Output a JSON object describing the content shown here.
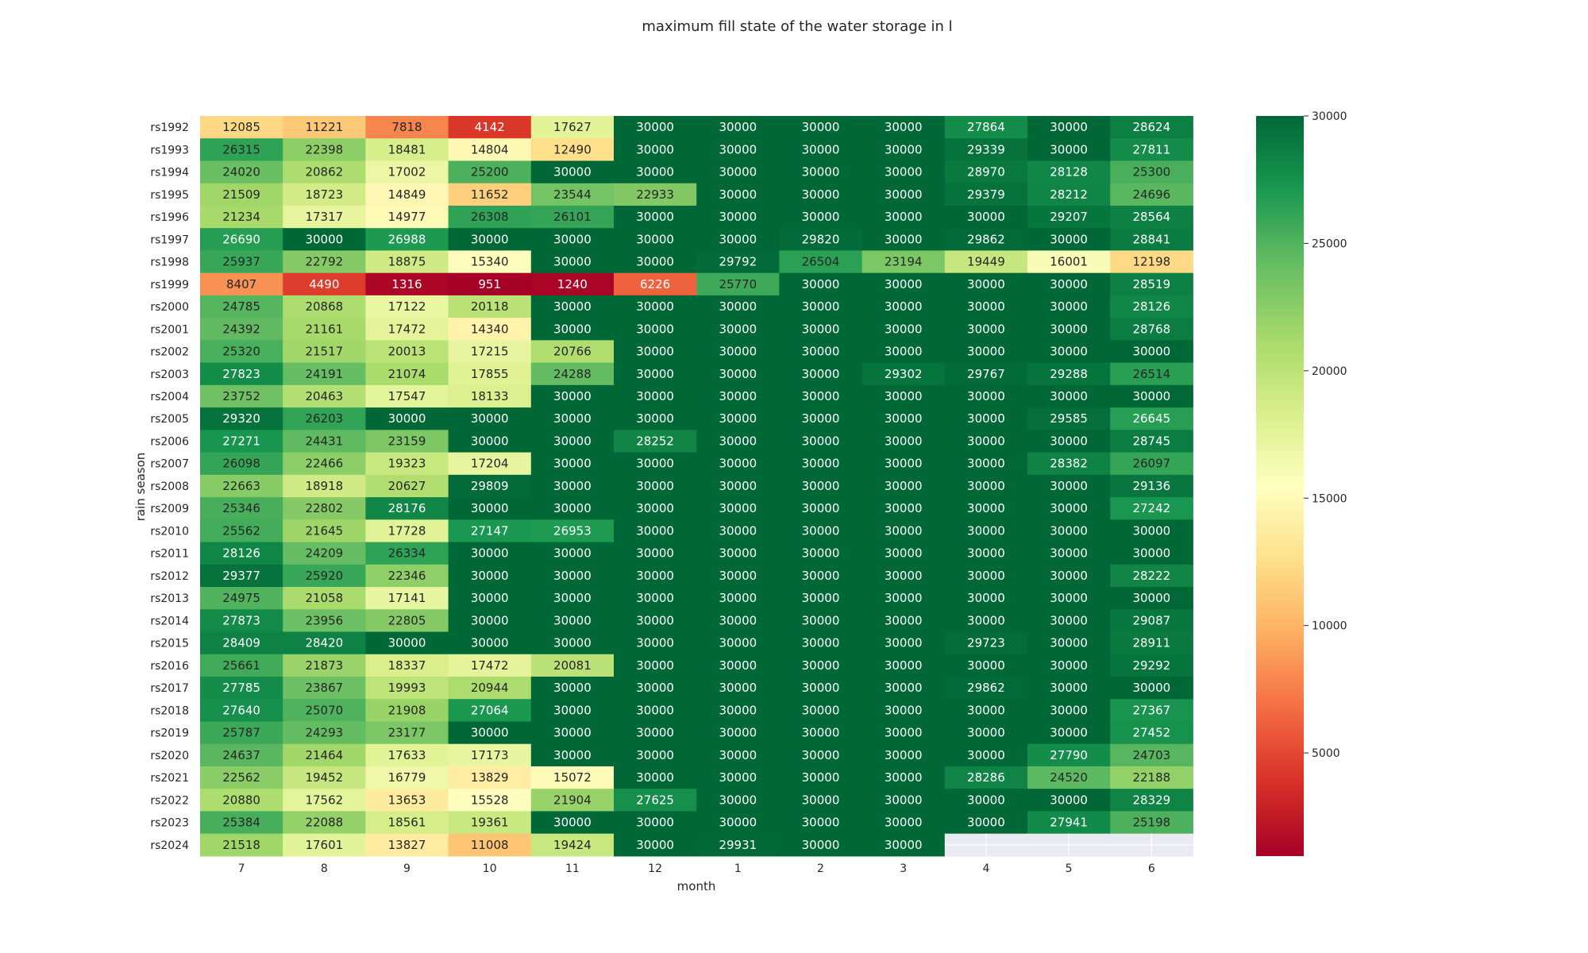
{
  "chart_data": {
    "type": "heatmap",
    "title": "maximum fill state of the water storage in l",
    "xlabel": "month",
    "ylabel": "rain season",
    "colormap": "RdYlGn",
    "vmin": 951,
    "vmax": 30000,
    "colorbar_ticks": [
      5000,
      10000,
      15000,
      20000,
      25000,
      30000
    ],
    "columns": [
      "7",
      "8",
      "9",
      "10",
      "11",
      "12",
      "1",
      "2",
      "3",
      "4",
      "5",
      "6"
    ],
    "rows": [
      "rs1992",
      "rs1993",
      "rs1994",
      "rs1995",
      "rs1996",
      "rs1997",
      "rs1998",
      "rs1999",
      "rs2000",
      "rs2001",
      "rs2002",
      "rs2003",
      "rs2004",
      "rs2005",
      "rs2006",
      "rs2007",
      "rs2008",
      "rs2009",
      "rs2010",
      "rs2011",
      "rs2012",
      "rs2013",
      "rs2014",
      "rs2015",
      "rs2016",
      "rs2017",
      "rs2018",
      "rs2019",
      "rs2020",
      "rs2021",
      "rs2022",
      "rs2023",
      "rs2024"
    ],
    "values": [
      [
        12085,
        11221,
        7818,
        4142,
        17627,
        30000,
        30000,
        30000,
        30000,
        27864,
        30000,
        28624
      ],
      [
        26315,
        22398,
        18481,
        14804,
        12490,
        30000,
        30000,
        30000,
        30000,
        29339,
        30000,
        27811
      ],
      [
        24020,
        20862,
        17002,
        25200,
        30000,
        30000,
        30000,
        30000,
        30000,
        28970,
        28128,
        25300
      ],
      [
        21509,
        18723,
        14849,
        11652,
        23544,
        22933,
        30000,
        30000,
        30000,
        29379,
        28212,
        24696
      ],
      [
        21234,
        17317,
        14977,
        26308,
        26101,
        30000,
        30000,
        30000,
        30000,
        30000,
        29207,
        28564
      ],
      [
        26690,
        30000,
        26988,
        30000,
        30000,
        30000,
        30000,
        29820,
        30000,
        29862,
        30000,
        28841
      ],
      [
        25937,
        22792,
        18875,
        15340,
        30000,
        30000,
        29792,
        26504,
        23194,
        19449,
        16001,
        12198
      ],
      [
        8407,
        4490,
        1316,
        951,
        1240,
        6226,
        25770,
        30000,
        30000,
        30000,
        30000,
        28519
      ],
      [
        24785,
        20868,
        17122,
        20118,
        30000,
        30000,
        30000,
        30000,
        30000,
        30000,
        30000,
        28126
      ],
      [
        24392,
        21161,
        17472,
        14340,
        30000,
        30000,
        30000,
        30000,
        30000,
        30000,
        30000,
        28768
      ],
      [
        25320,
        21517,
        20013,
        17215,
        20766,
        30000,
        30000,
        30000,
        30000,
        30000,
        30000,
        30000
      ],
      [
        27823,
        24191,
        21074,
        17855,
        24288,
        30000,
        30000,
        30000,
        29302,
        29767,
        29288,
        26514
      ],
      [
        23752,
        20463,
        17547,
        18133,
        30000,
        30000,
        30000,
        30000,
        30000,
        30000,
        30000,
        30000
      ],
      [
        29320,
        26203,
        30000,
        30000,
        30000,
        30000,
        30000,
        30000,
        30000,
        30000,
        29585,
        26645
      ],
      [
        27271,
        24431,
        23159,
        30000,
        30000,
        28252,
        30000,
        30000,
        30000,
        30000,
        30000,
        28745
      ],
      [
        26098,
        22466,
        19323,
        17204,
        30000,
        30000,
        30000,
        30000,
        30000,
        30000,
        28382,
        26097
      ],
      [
        22663,
        18918,
        20627,
        29809,
        30000,
        30000,
        30000,
        30000,
        30000,
        30000,
        30000,
        29136
      ],
      [
        25346,
        22802,
        28176,
        30000,
        30000,
        30000,
        30000,
        30000,
        30000,
        30000,
        30000,
        27242
      ],
      [
        25562,
        21645,
        17728,
        27147,
        26953,
        30000,
        30000,
        30000,
        30000,
        30000,
        30000,
        30000
      ],
      [
        28126,
        24209,
        26334,
        30000,
        30000,
        30000,
        30000,
        30000,
        30000,
        30000,
        30000,
        30000
      ],
      [
        29377,
        25920,
        22346,
        30000,
        30000,
        30000,
        30000,
        30000,
        30000,
        30000,
        30000,
        28222
      ],
      [
        24975,
        21058,
        17141,
        30000,
        30000,
        30000,
        30000,
        30000,
        30000,
        30000,
        30000,
        30000
      ],
      [
        27873,
        23956,
        22805,
        30000,
        30000,
        30000,
        30000,
        30000,
        30000,
        30000,
        30000,
        29087
      ],
      [
        28409,
        28420,
        30000,
        30000,
        30000,
        30000,
        30000,
        30000,
        30000,
        29723,
        30000,
        28911
      ],
      [
        25661,
        21873,
        18337,
        17472,
        20081,
        30000,
        30000,
        30000,
        30000,
        30000,
        30000,
        29292
      ],
      [
        27785,
        23867,
        19993,
        20944,
        30000,
        30000,
        30000,
        30000,
        30000,
        29862,
        30000,
        30000
      ],
      [
        27640,
        25070,
        21908,
        27064,
        30000,
        30000,
        30000,
        30000,
        30000,
        30000,
        30000,
        27367
      ],
      [
        25787,
        24293,
        23177,
        30000,
        30000,
        30000,
        30000,
        30000,
        30000,
        30000,
        30000,
        27452
      ],
      [
        24637,
        21464,
        17633,
        17173,
        30000,
        30000,
        30000,
        30000,
        30000,
        30000,
        27790,
        24703
      ],
      [
        22562,
        19452,
        16779,
        13829,
        15072,
        30000,
        30000,
        30000,
        30000,
        28286,
        24520,
        22188
      ],
      [
        20880,
        17562,
        13653,
        15528,
        21904,
        27625,
        30000,
        30000,
        30000,
        30000,
        30000,
        28329
      ],
      [
        25384,
        22088,
        18561,
        19361,
        30000,
        30000,
        30000,
        30000,
        30000,
        30000,
        27941,
        25198
      ],
      [
        21518,
        17601,
        13827,
        11008,
        19424,
        30000,
        29931,
        30000,
        30000,
        null,
        null,
        null
      ]
    ]
  }
}
